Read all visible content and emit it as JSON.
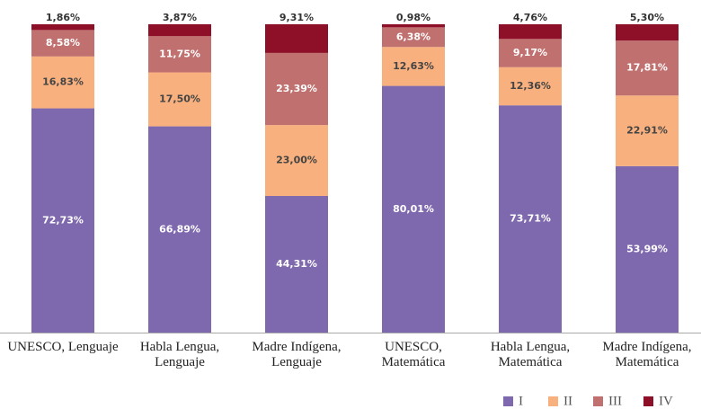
{
  "chart_data": {
    "type": "stacked_bar",
    "categories": [
      "UNESCO, Lenguaje",
      "Habla Lengua, Lenguaje",
      "Madre Indígena, Lenguaje",
      "UNESCO, Matemática",
      "Habla Lengua, Matemática",
      "Madre Indígena, Matemática"
    ],
    "ylim": [
      0,
      100
    ],
    "legend": "bottom-right",
    "series": [
      {
        "name": "I",
        "color": "#7f69ae",
        "values": [
          72.73,
          66.89,
          44.31,
          80.01,
          73.71,
          53.99
        ],
        "value_labels": [
          "72,73%",
          "66,89%",
          "44,31%",
          "80,01%",
          "73,71%",
          "53,99%"
        ]
      },
      {
        "name": "II",
        "color": "#f8b07e",
        "values": [
          16.83,
          17.5,
          23.0,
          12.63,
          12.36,
          22.91
        ],
        "value_labels": [
          "16,83%",
          "17,50%",
          "23,00%",
          "12,63%",
          "12,36%",
          "22,91%"
        ]
      },
      {
        "name": "III",
        "color": "#c0706e",
        "values": [
          8.58,
          11.75,
          23.39,
          6.38,
          9.17,
          17.81
        ],
        "value_labels": [
          "8,58%",
          "11,75%",
          "23,39%",
          "6,38%",
          "9,17%",
          "17,81%"
        ]
      },
      {
        "name": "IV",
        "color": "#8e0f28",
        "values": [
          1.86,
          3.87,
          9.31,
          0.98,
          4.76,
          5.3
        ],
        "value_labels": [
          "1,86%",
          "3,87%",
          "9,31%",
          "0,98%",
          "4,76%",
          "5,30%"
        ]
      }
    ]
  }
}
